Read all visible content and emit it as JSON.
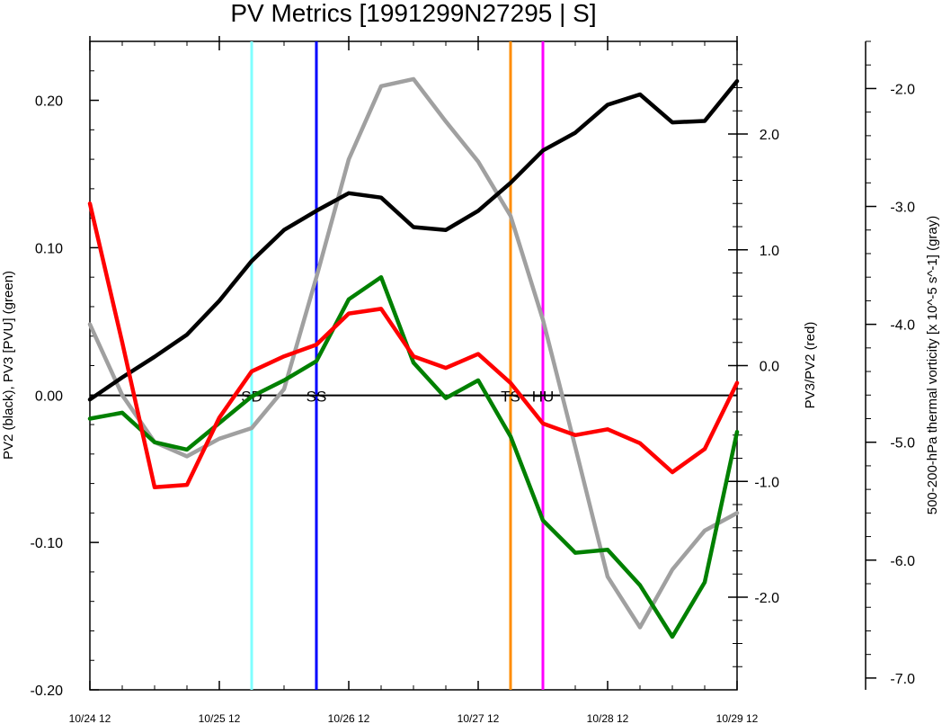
{
  "chart_data": {
    "type": "line",
    "title": "PV Metrics [1991299N27295 | S]",
    "x_ticks": [
      "10/24 12",
      "10/25 12",
      "10/26 12",
      "10/27 12",
      "10/28 12",
      "10/29 12"
    ],
    "x_range_days": [
      0,
      5
    ],
    "x_step_hours": 6,
    "left_axis": {
      "label": "PV2 (black), PV3 [PVU] (green)",
      "ylim": [
        -0.2,
        0.24
      ],
      "ticks": [
        "0.20",
        "0.10",
        "0.00",
        "-0.10",
        "-0.20"
      ],
      "tick_values": [
        0.2,
        0.1,
        0.0,
        -0.1,
        -0.2
      ]
    },
    "right_axis": {
      "label": "PV3/PV2 (red)",
      "ylim": [
        -2.8,
        2.8
      ],
      "ticks": [
        "2.0",
        "1.0",
        "0.0",
        "-1.0",
        "-2.0"
      ],
      "tick_values": [
        2.0,
        1.0,
        0.0,
        -1.0,
        -2.0
      ]
    },
    "far_axis": {
      "label": "500-200-hPa thermal vorticity [x 10^-5 s^-1] (gray)",
      "ylim": [
        -7.1,
        -1.6
      ],
      "ticks": [
        "-2.0",
        "-3.0",
        "-4.0",
        "-5.0",
        "-6.0",
        "-7.0"
      ],
      "tick_values": [
        -2.0,
        -3.0,
        -4.0,
        -5.0,
        -6.0,
        -7.0
      ]
    },
    "series": [
      {
        "name": "PV2",
        "color": "#000000",
        "axis": "left",
        "values": [
          -0.003,
          0.012,
          0.026,
          0.041,
          0.064,
          0.091,
          0.112,
          0.125,
          0.137,
          0.134,
          0.114,
          0.112,
          0.125,
          0.144,
          0.166,
          0.178,
          0.197,
          0.204,
          0.185,
          0.186,
          0.213
        ]
      },
      {
        "name": "PV3",
        "color": "#008000",
        "axis": "left",
        "values": [
          -0.016,
          -0.012,
          -0.032,
          -0.037,
          -0.019,
          -0.001,
          0.01,
          0.023,
          0.065,
          0.08,
          0.022,
          -0.002,
          0.01,
          -0.028,
          -0.085,
          -0.107,
          -0.105,
          -0.129,
          -0.164,
          -0.127,
          -0.025
        ]
      },
      {
        "name": "PV3/PV2",
        "color": "#ff0000",
        "axis": "right",
        "values": [
          1.4,
          0.2,
          -1.05,
          -1.03,
          -0.45,
          -0.05,
          0.08,
          0.18,
          0.45,
          0.49,
          0.08,
          -0.02,
          0.1,
          -0.15,
          -0.5,
          -0.6,
          -0.55,
          -0.67,
          -0.92,
          -0.72,
          -0.15
        ]
      },
      {
        "name": "500-200-hPa thermal vorticity",
        "color": "#a0a0a0",
        "axis": "far",
        "values": [
          -4.0,
          -4.6,
          -5.0,
          -5.12,
          -4.97,
          -4.88,
          -4.55,
          -3.6,
          -2.6,
          -1.98,
          -1.92,
          -2.28,
          -2.62,
          -3.08,
          -3.96,
          -5.04,
          -6.14,
          -6.57,
          -6.08,
          -5.75,
          -5.6
        ]
      }
    ],
    "events": [
      {
        "label": "SD",
        "color": "#80ffff",
        "hours": 30
      },
      {
        "label": "SS",
        "color": "#0000ff",
        "hours": 42
      },
      {
        "label": "TS",
        "color": "#ff8c00",
        "hours": 78
      },
      {
        "label": "HU",
        "color": "#ff00ff",
        "hours": 84
      }
    ],
    "zero_line": true,
    "grid": false
  }
}
